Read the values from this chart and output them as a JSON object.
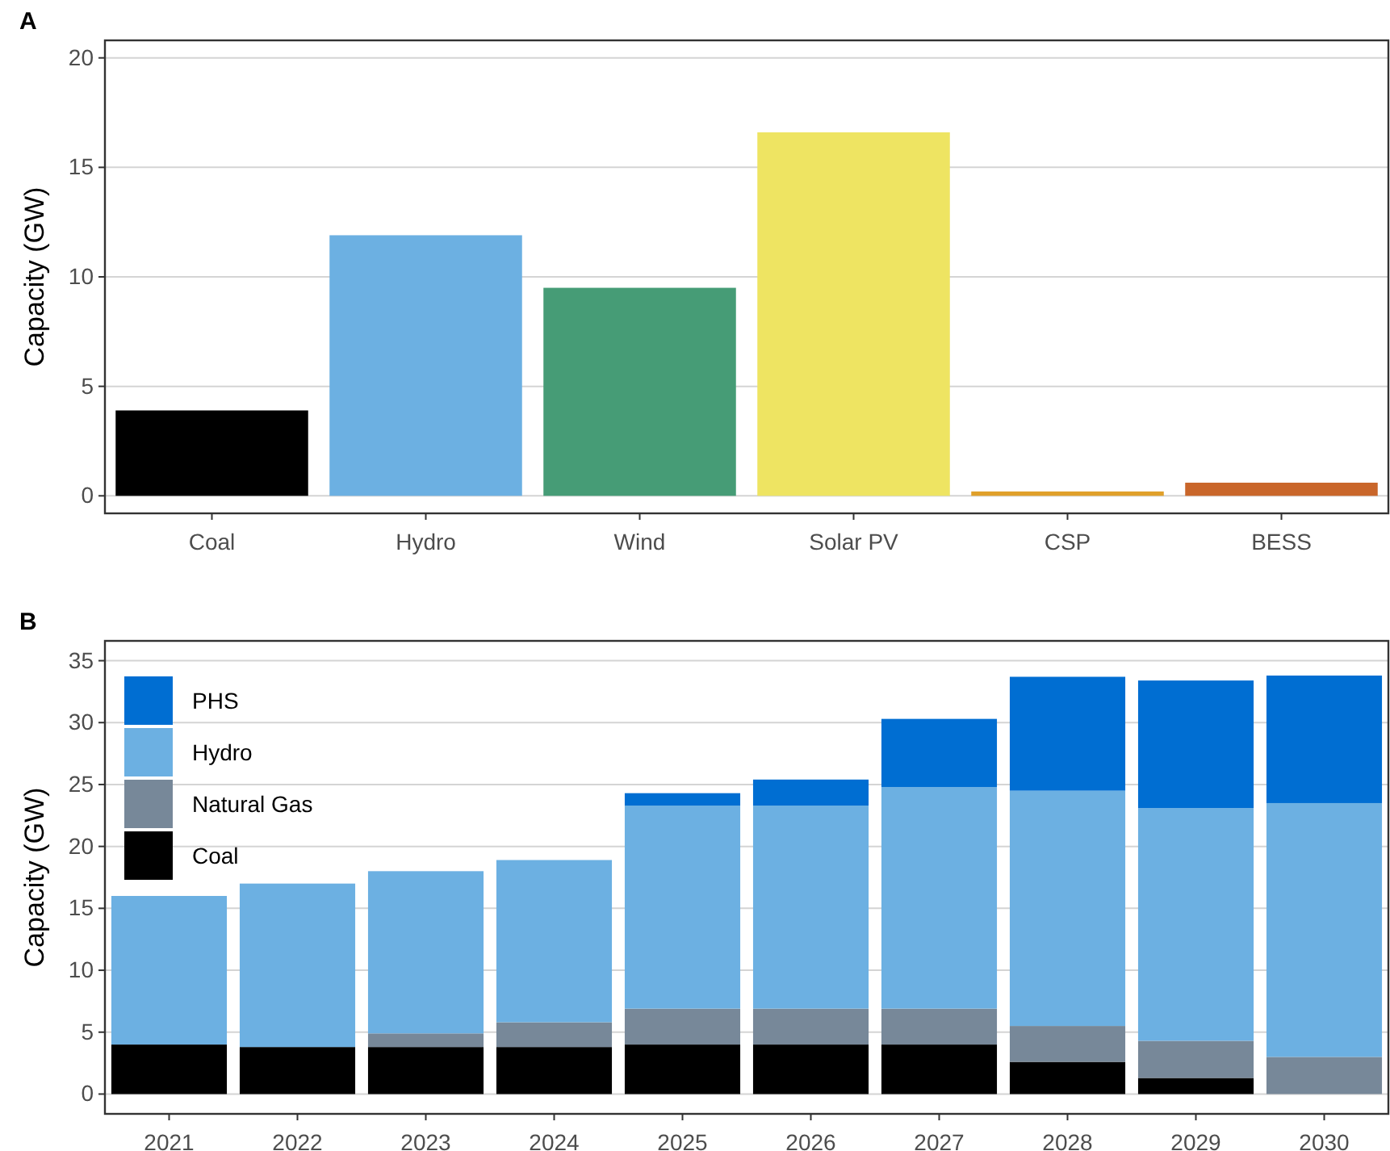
{
  "chart_data": [
    {
      "type": "bar",
      "title": "A",
      "ylabel": "Capacity (GW)",
      "categories": [
        "Coal",
        "Hydro",
        "Wind",
        "Solar PV",
        "CSP",
        "BESS"
      ],
      "values": [
        3.9,
        11.9,
        9.5,
        16.6,
        0.2,
        0.6
      ],
      "colors": [
        "#000000",
        "#6cb0e2",
        "#469c76",
        "#eee462",
        "#e0a02a",
        "#c9662a"
      ],
      "ylim": [
        -0.8,
        20.8
      ],
      "yticks": [
        0,
        5,
        10,
        15,
        20
      ],
      "grid": "y"
    },
    {
      "type": "bar",
      "title": "B",
      "ylabel": "Capacity (GW)",
      "stacked": true,
      "legend": "top left",
      "categories": [
        "2021",
        "2022",
        "2023",
        "2024",
        "2025",
        "2026",
        "2027",
        "2028",
        "2029",
        "2030"
      ],
      "series": [
        {
          "name": "Coal",
          "color": "#000000",
          "values": [
            4.0,
            3.8,
            3.8,
            3.8,
            4.0,
            4.0,
            4.0,
            2.6,
            1.3,
            0
          ]
        },
        {
          "name": "Natural Gas",
          "color": "#778899",
          "values": [
            0,
            0,
            1.1,
            2.0,
            2.9,
            2.9,
            2.9,
            2.9,
            3.0,
            3.0
          ]
        },
        {
          "name": "Hydro",
          "color": "#6cb0e2",
          "values": [
            12.0,
            13.2,
            13.1,
            13.1,
            16.4,
            16.4,
            17.9,
            19.0,
            18.8,
            20.5
          ]
        },
        {
          "name": "PHS",
          "color": "#006ed2",
          "values": [
            0,
            0,
            0,
            0,
            1.0,
            2.1,
            5.5,
            9.2,
            10.3,
            10.3
          ]
        }
      ],
      "ylim": [
        -1.6,
        36.6
      ],
      "yticks": [
        0,
        5,
        10,
        15,
        20,
        25,
        30,
        35
      ],
      "grid": "y"
    }
  ]
}
